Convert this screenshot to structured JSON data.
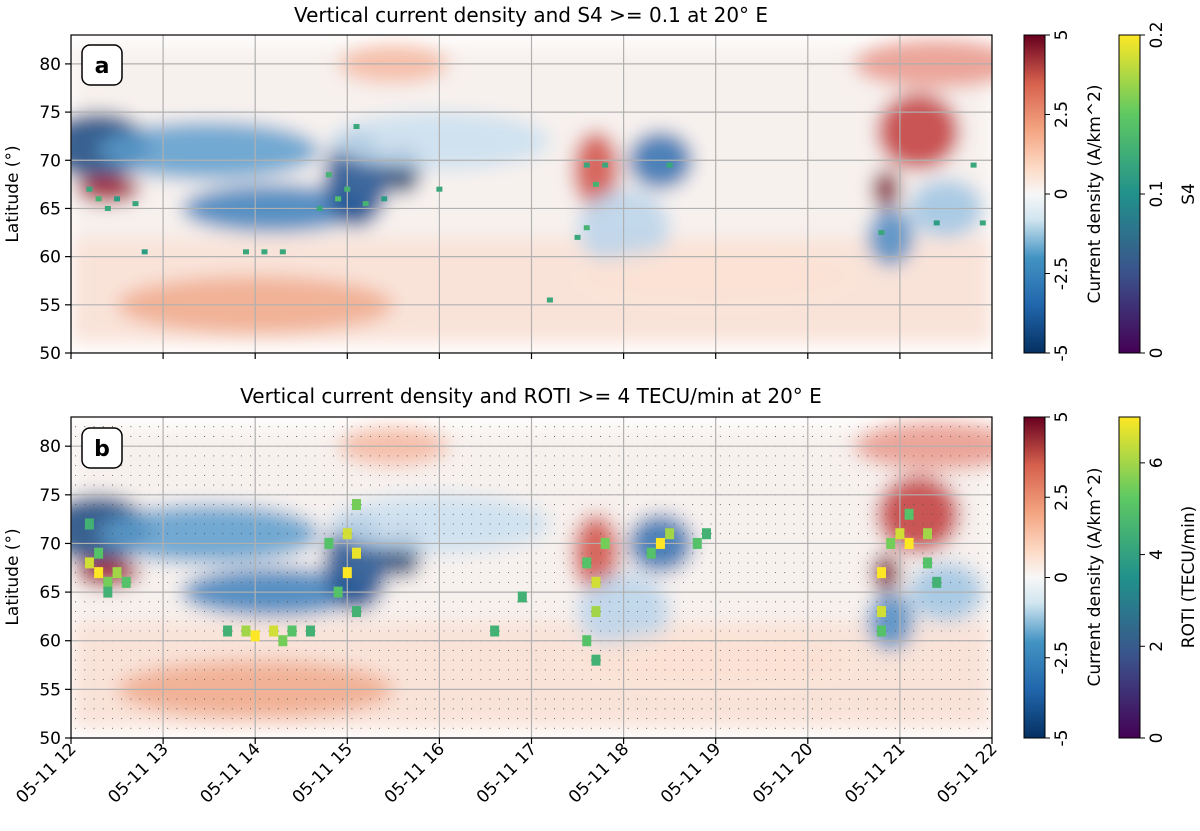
{
  "chart_data": [
    {
      "type": "heatmap",
      "panel_label": "a",
      "title": "Vertical current density and S4 >= 0.1 at 20° E",
      "ylabel": "Latitude (°)",
      "xlabel": "",
      "ylim": [
        50,
        83
      ],
      "yticks": [
        50,
        55,
        60,
        65,
        70,
        75,
        80
      ],
      "xlim": [
        12,
        22
      ],
      "xticks": [
        12,
        13,
        14,
        15,
        16,
        17,
        18,
        19,
        20,
        21,
        22
      ],
      "xtick_labels": [],
      "grid": true,
      "colorbars": [
        {
          "label": "Current density (A/km^2)",
          "range": [
            -5,
            5
          ],
          "tick_labels": [
            "-5",
            "-2.5",
            "0",
            "2.5",
            "5"
          ],
          "tick_values": [
            -5,
            -2.5,
            0,
            2.5,
            5
          ],
          "colormap": "RdBu_r"
        },
        {
          "label": "S4",
          "range": [
            0,
            0.2
          ],
          "tick_labels": [
            "0",
            "0.1",
            "0.2"
          ],
          "tick_values": [
            0,
            0.1,
            0.2
          ],
          "colormap": "viridis"
        }
      ],
      "overlay_points": [
        {
          "x": 12.2,
          "y": 67,
          "value": 0.12
        },
        {
          "x": 12.3,
          "y": 66,
          "value": 0.13
        },
        {
          "x": 12.4,
          "y": 65,
          "value": 0.12
        },
        {
          "x": 12.5,
          "y": 66,
          "value": 0.11
        },
        {
          "x": 12.7,
          "y": 65.5,
          "value": 0.12
        },
        {
          "x": 12.8,
          "y": 60.5,
          "value": 0.11
        },
        {
          "x": 13.9,
          "y": 60.5,
          "value": 0.12
        },
        {
          "x": 14.1,
          "y": 60.5,
          "value": 0.12
        },
        {
          "x": 14.3,
          "y": 60.5,
          "value": 0.12
        },
        {
          "x": 14.8,
          "y": 68.5,
          "value": 0.13
        },
        {
          "x": 14.9,
          "y": 66,
          "value": 0.14
        },
        {
          "x": 15.0,
          "y": 67,
          "value": 0.13
        },
        {
          "x": 15.1,
          "y": 73.5,
          "value": 0.12
        },
        {
          "x": 15.2,
          "y": 65.5,
          "value": 0.13
        },
        {
          "x": 14.7,
          "y": 65,
          "value": 0.12
        },
        {
          "x": 15.4,
          "y": 66,
          "value": 0.11
        },
        {
          "x": 16.0,
          "y": 67,
          "value": 0.12
        },
        {
          "x": 17.2,
          "y": 55.5,
          "value": 0.12
        },
        {
          "x": 17.6,
          "y": 69.5,
          "value": 0.12
        },
        {
          "x": 17.7,
          "y": 67.5,
          "value": 0.13
        },
        {
          "x": 17.8,
          "y": 69.5,
          "value": 0.12
        },
        {
          "x": 17.6,
          "y": 63,
          "value": 0.13
        },
        {
          "x": 17.5,
          "y": 62,
          "value": 0.12
        },
        {
          "x": 18.5,
          "y": 69.5,
          "value": 0.12
        },
        {
          "x": 20.8,
          "y": 62.5,
          "value": 0.12
        },
        {
          "x": 21.4,
          "y": 63.5,
          "value": 0.11
        },
        {
          "x": 21.9,
          "y": 63.5,
          "value": 0.12
        },
        {
          "x": 21.8,
          "y": 69.5,
          "value": 0.12
        }
      ]
    },
    {
      "type": "heatmap",
      "panel_label": "b",
      "title": "Vertical current density and ROTI >= 4 TECU/min at 20° E",
      "ylabel": "Latitude (°)",
      "xlabel": "",
      "ylim": [
        50,
        83
      ],
      "yticks": [
        50,
        55,
        60,
        65,
        70,
        75,
        80
      ],
      "xlim": [
        12,
        22
      ],
      "xticks": [
        12,
        13,
        14,
        15,
        16,
        17,
        18,
        19,
        20,
        21,
        22
      ],
      "xtick_labels": [
        "05-11 12",
        "05-11 13",
        "05-11 14",
        "05-11 15",
        "05-11 16",
        "05-11 17",
        "05-11 18",
        "05-11 19",
        "05-11 20",
        "05-11 21",
        "05-11 22"
      ],
      "grid": true,
      "colorbars": [
        {
          "label": "Current density (A/km^2)",
          "range": [
            -5,
            5
          ],
          "tick_labels": [
            "-5",
            "-2.5",
            "0",
            "2.5",
            "5"
          ],
          "tick_values": [
            -5,
            -2.5,
            0,
            2.5,
            5
          ],
          "colormap": "RdBu_r"
        },
        {
          "label": "ROTI (TECU/min)",
          "range": [
            0,
            7
          ],
          "tick_labels": [
            "0",
            "2",
            "4",
            "6"
          ],
          "tick_values": [
            0,
            2,
            4,
            6
          ],
          "colormap": "viridis"
        }
      ],
      "overlay_points": [
        {
          "x": 12.2,
          "y": 68,
          "value": 6.5
        },
        {
          "x": 12.3,
          "y": 67,
          "value": 7
        },
        {
          "x": 12.3,
          "y": 69,
          "value": 5
        },
        {
          "x": 12.2,
          "y": 72,
          "value": 4.5
        },
        {
          "x": 12.4,
          "y": 66,
          "value": 5.5
        },
        {
          "x": 12.5,
          "y": 67,
          "value": 6
        },
        {
          "x": 12.6,
          "y": 66,
          "value": 5
        },
        {
          "x": 12.4,
          "y": 65,
          "value": 4.5
        },
        {
          "x": 13.7,
          "y": 61,
          "value": 4.5
        },
        {
          "x": 13.9,
          "y": 61,
          "value": 6
        },
        {
          "x": 14.0,
          "y": 60.5,
          "value": 7
        },
        {
          "x": 14.2,
          "y": 61,
          "value": 6.5
        },
        {
          "x": 14.4,
          "y": 61,
          "value": 5
        },
        {
          "x": 14.6,
          "y": 61,
          "value": 4.5
        },
        {
          "x": 14.3,
          "y": 60,
          "value": 5.5
        },
        {
          "x": 14.8,
          "y": 70,
          "value": 5
        },
        {
          "x": 15.0,
          "y": 71,
          "value": 6.5
        },
        {
          "x": 15.0,
          "y": 67,
          "value": 7
        },
        {
          "x": 15.1,
          "y": 74,
          "value": 5.5
        },
        {
          "x": 15.1,
          "y": 69,
          "value": 6.8
        },
        {
          "x": 14.9,
          "y": 65,
          "value": 5
        },
        {
          "x": 15.1,
          "y": 63,
          "value": 4.5
        },
        {
          "x": 16.6,
          "y": 61,
          "value": 4.5
        },
        {
          "x": 16.9,
          "y": 64.5,
          "value": 4.5
        },
        {
          "x": 17.6,
          "y": 68,
          "value": 5
        },
        {
          "x": 17.7,
          "y": 66,
          "value": 6.5
        },
        {
          "x": 17.7,
          "y": 63,
          "value": 6
        },
        {
          "x": 17.6,
          "y": 60,
          "value": 5
        },
        {
          "x": 17.7,
          "y": 58,
          "value": 4.5
        },
        {
          "x": 17.8,
          "y": 70,
          "value": 5.5
        },
        {
          "x": 18.4,
          "y": 70,
          "value": 7
        },
        {
          "x": 18.5,
          "y": 71,
          "value": 6
        },
        {
          "x": 18.3,
          "y": 69,
          "value": 5
        },
        {
          "x": 18.8,
          "y": 70,
          "value": 5
        },
        {
          "x": 18.9,
          "y": 71,
          "value": 4.5
        },
        {
          "x": 20.8,
          "y": 67,
          "value": 7
        },
        {
          "x": 20.8,
          "y": 63,
          "value": 6.5
        },
        {
          "x": 20.8,
          "y": 61,
          "value": 5
        },
        {
          "x": 20.9,
          "y": 70,
          "value": 5.5
        },
        {
          "x": 21.0,
          "y": 71,
          "value": 6.5
        },
        {
          "x": 21.1,
          "y": 70,
          "value": 7
        },
        {
          "x": 21.1,
          "y": 73,
          "value": 5
        },
        {
          "x": 21.3,
          "y": 71,
          "value": 6
        },
        {
          "x": 21.3,
          "y": 68,
          "value": 5
        },
        {
          "x": 21.4,
          "y": 66,
          "value": 4.5
        }
      ]
    }
  ],
  "colors": {
    "current_positive": "#67001f",
    "current_negative": "#053061",
    "grid": "#b0b0b0"
  }
}
